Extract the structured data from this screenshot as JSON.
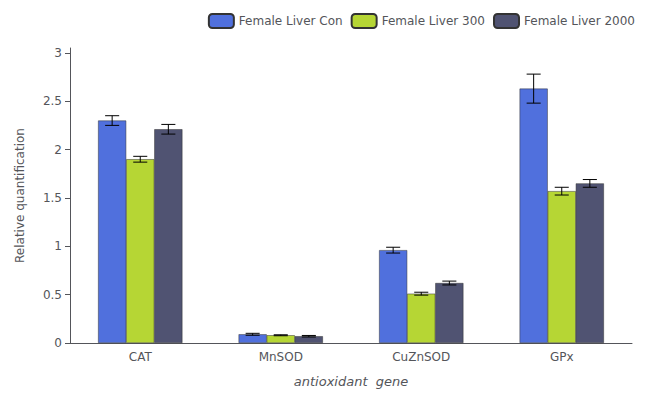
{
  "chart_data": {
    "type": "bar",
    "categories": [
      "CAT",
      "MnSOD",
      "CuZnSOD",
      "GPx"
    ],
    "series": [
      {
        "name": "Female Liver Con",
        "values": [
          2.3,
          0.09,
          0.96,
          2.63
        ],
        "errors": [
          0.05,
          0.01,
          0.03,
          0.15
        ]
      },
      {
        "name": "Female Liver 300",
        "values": [
          1.9,
          0.08,
          0.51,
          1.57
        ],
        "errors": [
          0.03,
          0.005,
          0.015,
          0.04
        ]
      },
      {
        "name": "Female Liver 2000",
        "values": [
          2.21,
          0.07,
          0.62,
          1.65
        ],
        "errors": [
          0.05,
          0.008,
          0.02,
          0.04
        ]
      }
    ],
    "xlabel": "antioxidant  gene",
    "ylabel": "Relative quantification",
    "ylim": [
      0,
      3.05
    ],
    "yticks": [
      0,
      0.5,
      1,
      1.5,
      2,
      2.5,
      3
    ],
    "grid": false,
    "legend": "upper right"
  }
}
